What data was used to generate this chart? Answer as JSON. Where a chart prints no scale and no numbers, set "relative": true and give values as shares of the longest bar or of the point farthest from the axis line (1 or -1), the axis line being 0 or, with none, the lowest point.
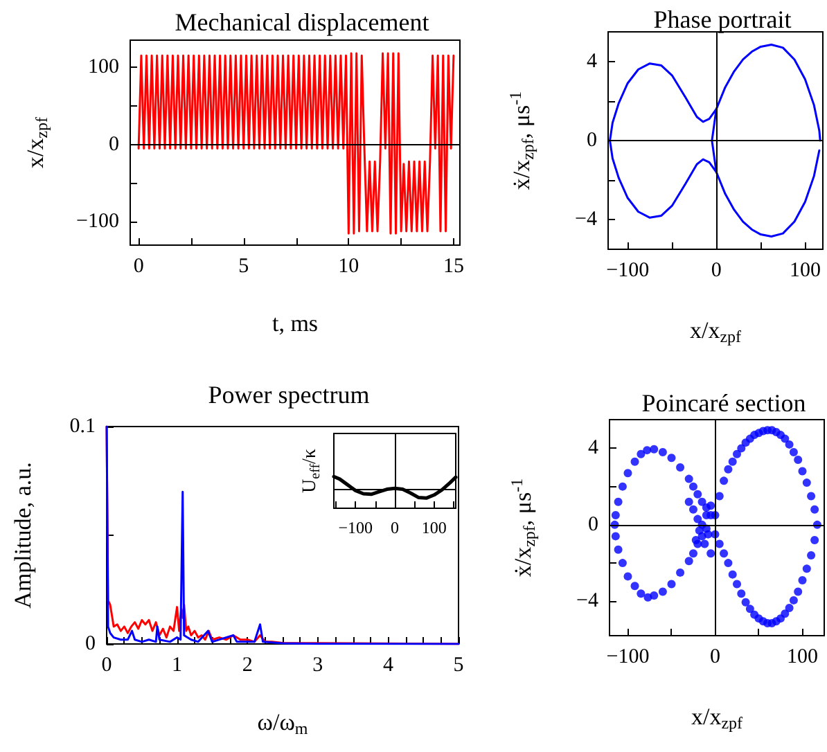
{
  "chart_data": [
    {
      "type": "line",
      "title": "Mechanical displacement",
      "xlabel": "t, ms",
      "ylabel": "x/x$_{zpf}$",
      "x": [
        0,
        0.125,
        0.25,
        0.375,
        0.5,
        0.625,
        0.75,
        0.875,
        1,
        1.125,
        1.25,
        1.375,
        1.5,
        1.625,
        1.75,
        1.875,
        2,
        2.125,
        2.25,
        2.375,
        2.5,
        2.625,
        2.75,
        2.875,
        3,
        3.125,
        3.25,
        3.375,
        3.5,
        3.625,
        3.75,
        3.875,
        4,
        4.125,
        4.25,
        4.375,
        4.5,
        4.625,
        4.75,
        4.875,
        5,
        5.125,
        5.25,
        5.375,
        5.5,
        5.625,
        5.75,
        5.875,
        6,
        6.125,
        6.25,
        6.375,
        6.5,
        6.625,
        6.75,
        6.875,
        7,
        7.125,
        7.25,
        7.375,
        7.5,
        7.625,
        7.75,
        7.875,
        8,
        8.125,
        8.25,
        8.375,
        8.5,
        8.625,
        8.75,
        8.875,
        9,
        9.125,
        9.25,
        9.375,
        9.5,
        9.625,
        9.75,
        9.875,
        10,
        10.125,
        10.25,
        10.375,
        10.5,
        10.625,
        10.75,
        10.875,
        11,
        11.125,
        11.25,
        11.375,
        11.5,
        11.625,
        11.75,
        11.875,
        12,
        12.125,
        12.25,
        12.375,
        12.5,
        12.625,
        12.75,
        12.875,
        13,
        13.125,
        13.25,
        13.375,
        13.5,
        13.625,
        13.75,
        13.875,
        14,
        14.125,
        14.25,
        14.375,
        14.5,
        14.625,
        14.75,
        14.875,
        15
      ],
      "series": [
        {
          "color": "#ff0000",
          "values": [
            -5,
            115,
            -5,
            115,
            -5,
            115,
            -5,
            115,
            -5,
            115,
            -5,
            115,
            -5,
            115,
            -5,
            115,
            -5,
            115,
            -5,
            115,
            -5,
            115,
            -5,
            115,
            -5,
            115,
            -5,
            115,
            -5,
            115,
            -5,
            115,
            -5,
            115,
            -5,
            115,
            -5,
            115,
            -5,
            115,
            -5,
            115,
            -5,
            115,
            -5,
            115,
            -5,
            115,
            -5,
            115,
            -5,
            115,
            -5,
            115,
            -5,
            115,
            -5,
            115,
            -5,
            115,
            -5,
            115,
            -5,
            115,
            -5,
            115,
            -5,
            115,
            -5,
            115,
            -5,
            115,
            -5,
            115,
            -5,
            115,
            -5,
            115,
            -5,
            115,
            -115,
            118,
            -115,
            118,
            -112,
            115,
            -5,
            -112,
            -22,
            -112,
            -22,
            -112,
            -22,
            118,
            -5,
            118,
            -115,
            118,
            -115,
            118,
            -112,
            -25,
            -112,
            -22,
            -112,
            -22,
            -112,
            -22,
            -112,
            -22,
            -112,
            -22,
            115,
            -5,
            115,
            -112,
            115,
            -112,
            115,
            -5,
            115
          ]
        }
      ],
      "xlim": [
        -0.4,
        15.3
      ],
      "ylim": [
        -130,
        135
      ],
      "xticks": [
        0,
        {
          "value": 2.5,
          "label": null
        },
        5,
        {
          "value": 7.5,
          "label": null
        },
        10,
        {
          "value": 12.5,
          "label": null
        },
        15
      ],
      "yticks": [
        {
          "value": -100,
          "label": "−100"
        },
        {
          "value": -50,
          "label": null
        },
        0,
        {
          "value": 50,
          "label": null
        },
        100
      ],
      "ref_lines": [
        {
          "axis": "y",
          "value": 0,
          "color": "#000000"
        }
      ],
      "grid": false
    },
    {
      "type": "line",
      "title": "Phase portrait",
      "xlabel": "x/x$_{zpf}$",
      "ylabel": "ẋ/x$_{zpf}$, μs$^{-1}$",
      "series": [
        {
          "color": "#0000ff",
          "x": [
            0,
            -8,
            -15,
            -22,
            -35,
            -50,
            -62,
            -75,
            -88,
            -100,
            -110,
            -117,
            -120,
            -117,
            -110,
            -100,
            -88,
            -75,
            -62,
            -50,
            -35,
            -22,
            -15,
            -8,
            0
          ],
          "values": [
            1.6,
            1.1,
            0.95,
            1.2,
            2.2,
            3.3,
            3.8,
            3.9,
            3.6,
            2.9,
            1.9,
            0.9,
            0,
            -0.9,
            -1.9,
            -2.9,
            -3.6,
            -3.9,
            -3.8,
            -3.3,
            -2.2,
            -1.2,
            -0.95,
            -1.1,
            -1.6
          ]
        },
        {
          "color": "#0000ff",
          "x": [
            117,
            116,
            110,
            100,
            88,
            75,
            62,
            50,
            40,
            30,
            20,
            10,
            0,
            -5,
            0,
            10,
            20,
            30,
            40,
            50,
            62,
            75,
            88,
            100,
            110,
            116
          ],
          "values": [
            0,
            0.5,
            1.8,
            3.1,
            4.1,
            4.7,
            4.85,
            4.75,
            4.5,
            4.1,
            3.5,
            2.7,
            1.6,
            0,
            -1.6,
            -2.7,
            -3.5,
            -4.1,
            -4.5,
            -4.75,
            -4.85,
            -4.7,
            -4.1,
            -3.1,
            -1.8,
            -0.5
          ]
        }
      ],
      "xlim": [
        -122,
        120
      ],
      "ylim": [
        -5.5,
        5.5
      ],
      "xticks": [
        {
          "value": -100,
          "label": "−100"
        },
        {
          "value": -50,
          "label": null
        },
        0,
        {
          "value": 50,
          "label": null
        },
        100
      ],
      "yticks": [
        {
          "value": -4,
          "label": "−4"
        },
        {
          "value": -2,
          "label": null
        },
        0,
        {
          "value": 2,
          "label": null
        },
        4
      ],
      "ref_lines": [
        {
          "axis": "x",
          "value": 0,
          "color": "#000000"
        },
        {
          "axis": "y",
          "value": 0,
          "color": "#000000"
        }
      ],
      "grid": false
    },
    {
      "type": "line",
      "title": "Power spectrum",
      "xlabel": "ω/ω$_{m}$",
      "ylabel": "Amplitude, a.u.",
      "series": [
        {
          "color": "#ff0000",
          "x": [
            0,
            0.02,
            0.05,
            0.08,
            0.1,
            0.15,
            0.2,
            0.25,
            0.3,
            0.35,
            0.4,
            0.45,
            0.5,
            0.55,
            0.6,
            0.65,
            0.7,
            0.75,
            0.8,
            0.85,
            0.9,
            0.95,
            1,
            1.03,
            1.06,
            1.08,
            1.1,
            1.13,
            1.16,
            1.2,
            1.25,
            1.3,
            1.35,
            1.4,
            1.45,
            1.5,
            1.6,
            1.7,
            1.8,
            1.9,
            2,
            2.1,
            2.18,
            2.25,
            2.35,
            2.5,
            5
          ],
          "values": [
            0.1,
            0.02,
            0.018,
            0.012,
            0.008,
            0.009,
            0.006,
            0.008,
            0.005,
            0.008,
            0.01,
            0.007,
            0.011,
            0.009,
            0.011,
            0.006,
            0.01,
            0.004,
            0.007,
            0.003,
            0.008,
            0.006,
            0.017,
            0.006,
            0.016,
            0.012,
            0.018,
            0.006,
            0.008,
            0.004,
            0.006,
            0.003,
            0.004,
            0.002,
            0.006,
            0.002,
            0.003,
            0.002,
            0.004,
            0.002,
            0.002,
            0.001,
            0.004,
            0.001,
            0.001,
            0.0005,
            0
          ]
        },
        {
          "color": "#0000ff",
          "x": [
            0,
            0.02,
            0.05,
            0.1,
            0.2,
            0.3,
            0.36,
            0.4,
            0.5,
            0.6,
            0.7,
            0.72,
            0.75,
            0.9,
            1,
            1.05,
            1.08,
            1.1,
            1.2,
            1.3,
            1.44,
            1.5,
            1.8,
            1.85,
            2.1,
            2.18,
            2.22,
            2.5,
            3,
            5
          ],
          "values": [
            0.1,
            0.008,
            0.005,
            0.003,
            0.002,
            0.002,
            0.006,
            0.002,
            0.001,
            0.002,
            0.001,
            0.008,
            0.002,
            0.001,
            0.003,
            0.002,
            0.07,
            0.004,
            0.002,
            0.001,
            0.006,
            0.001,
            0.004,
            0.001,
            0.001,
            0.009,
            0.001,
            0.0003,
            0.0001,
            0
          ]
        }
      ],
      "xlim": [
        0,
        5
      ],
      "ylim": [
        0,
        0.1
      ],
      "xticks": [
        0,
        {
          "value": 0.25,
          "label": null
        },
        {
          "value": 0.5,
          "label": null
        },
        {
          "value": 0.75,
          "label": null
        },
        1,
        {
          "value": 1.25,
          "label": null
        },
        {
          "value": 1.5,
          "label": null
        },
        {
          "value": 1.75,
          "label": null
        },
        2,
        {
          "value": 2.25,
          "label": null
        },
        {
          "value": 2.5,
          "label": null
        },
        {
          "value": 2.75,
          "label": null
        },
        3,
        {
          "value": 3.25,
          "label": null
        },
        {
          "value": 3.5,
          "label": null
        },
        {
          "value": 3.75,
          "label": null
        },
        4,
        {
          "value": 4.25,
          "label": null
        },
        {
          "value": 4.5,
          "label": null
        },
        {
          "value": 4.75,
          "label": null
        },
        5
      ],
      "yticks": [
        0,
        {
          "value": 0.05,
          "label": null
        },
        0.1
      ],
      "grid": false
    },
    {
      "type": "line",
      "ylabel": "U$_{eff}$/κ",
      "relative": true,
      "x": [
        -155,
        -140,
        -120,
        -100,
        -80,
        -60,
        -40,
        -20,
        0,
        20,
        40,
        60,
        80,
        100,
        120,
        140,
        155
      ],
      "series": [
        {
          "color": "#000000",
          "values": [
            1,
            0.8,
            0.35,
            -0.1,
            -0.35,
            -0.4,
            -0.2,
            0,
            0.07,
            0,
            -0.3,
            -0.65,
            -0.7,
            -0.45,
            -0.05,
            0.5,
            0.95
          ]
        }
      ],
      "xlim": [
        -155,
        155
      ],
      "xticks": [
        {
          "value": -150,
          "label": null
        },
        {
          "value": -100,
          "label": "−100"
        },
        {
          "value": -50,
          "label": null
        },
        0,
        {
          "value": 50,
          "label": null
        },
        100,
        {
          "value": 150,
          "label": null
        }
      ],
      "ref_lines": [
        {
          "axis": "x",
          "value": 0,
          "color": "#000000"
        },
        {
          "axis": "y",
          "value": 0,
          "color": "#000000"
        }
      ],
      "grid": false
    },
    {
      "type": "scatter",
      "title": "Poincaré section",
      "xlabel": "x/x$_{zpf}$",
      "ylabel": "ẋ/x$_{zpf}$, μs$^{-1}$",
      "marker": "circle",
      "x": [
        0,
        5,
        10,
        15,
        20,
        25,
        30,
        35,
        40,
        45,
        50,
        55,
        60,
        65,
        70,
        75,
        80,
        85,
        90,
        95,
        100,
        105,
        110,
        114,
        117,
        114,
        110,
        105,
        100,
        95,
        90,
        85,
        80,
        75,
        70,
        65,
        60,
        55,
        50,
        45,
        40,
        35,
        30,
        25,
        20,
        15,
        10,
        5,
        0,
        -5,
        -10,
        -15,
        -20,
        -25,
        -30,
        -40,
        -50,
        -60,
        -70,
        -78,
        -85,
        -92,
        -100,
        -106,
        -111,
        -114,
        -115,
        -114,
        -111,
        -106,
        -100,
        -92,
        -85,
        -77,
        -70,
        -60,
        -50,
        -40,
        -30,
        -25,
        -20,
        -15,
        -10,
        -20,
        -15,
        -10,
        -8,
        -12,
        -25,
        -5,
        -18,
        -5,
        -30,
        -22
      ],
      "series": [
        {
          "color": "#0000ff",
          "values": [
            0.5,
            1.5,
            2.3,
            2.9,
            3.3,
            3.7,
            4,
            4.3,
            4.5,
            4.7,
            4.8,
            4.9,
            4.95,
            4.95,
            4.85,
            4.7,
            4.5,
            4.2,
            3.8,
            3.4,
            2.8,
            2.2,
            1.5,
            0.8,
            0,
            -0.8,
            -1.6,
            -2.3,
            -2.9,
            -3.5,
            -3.95,
            -4.35,
            -4.65,
            -4.9,
            -5.05,
            -5.15,
            -5.15,
            -5.05,
            -4.9,
            -4.7,
            -4.4,
            -4.05,
            -3.6,
            -3.1,
            -2.6,
            -2,
            -1.5,
            -1,
            -0.5,
            0.5,
            0.9,
            1.2,
            1.6,
            2,
            2.4,
            3,
            3.5,
            3.8,
            3.95,
            3.9,
            3.7,
            3.3,
            2.7,
            2,
            1.2,
            0.5,
            0,
            -0.6,
            -1.3,
            -2,
            -2.7,
            -3.2,
            -3.6,
            -3.8,
            -3.7,
            -3.5,
            -3.1,
            -2.5,
            -1.9,
            -1.5,
            -1,
            -0.6,
            -0.2,
            0.3,
            0,
            0.5,
            -0.5,
            -1,
            0.8,
            -1.5,
            -0.3,
            1,
            1.2,
            -0.8
          ]
        }
      ],
      "xlim": [
        -121,
        125
      ],
      "ylim": [
        -5.8,
        5.5
      ],
      "xticks": [
        {
          "value": -100,
          "label": "−100"
        },
        {
          "value": -50,
          "label": null
        },
        0,
        {
          "value": 50,
          "label": null
        },
        100
      ],
      "yticks": [
        {
          "value": -4,
          "label": "−4"
        },
        {
          "value": -2,
          "label": null
        },
        0,
        {
          "value": 2,
          "label": null
        },
        4
      ],
      "ref_lines": [
        {
          "axis": "x",
          "value": 0,
          "color": "#000000"
        },
        {
          "axis": "y",
          "value": 0,
          "color": "#000000"
        }
      ],
      "grid": false
    }
  ]
}
